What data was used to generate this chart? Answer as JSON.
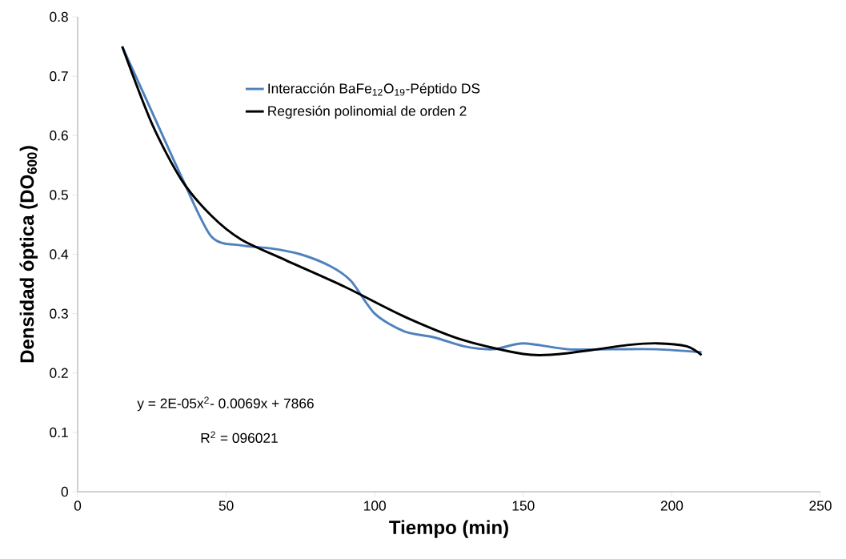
{
  "chart_data": {
    "type": "line",
    "xlabel": "Tiempo (min)",
    "ylabel": "Densidad óptica (DO$_{600}$)",
    "xlim": [
      0,
      250
    ],
    "xticks": [
      0,
      50,
      100,
      150,
      200,
      250
    ],
    "ylim": [
      0,
      0.8
    ],
    "yticks": [
      0,
      0.1,
      0.2,
      0.3,
      0.4,
      0.5,
      0.6,
      0.7,
      0.8
    ],
    "grid": false,
    "legend": "top",
    "marker": "none",
    "line_style": "solid",
    "series": [
      {
        "name": "Interacción BaFe$_{12}$O$_{19}$-Péptido DS",
        "color": "#4f81bd",
        "x": [
          15,
          25,
          35,
          45,
          55,
          65,
          75,
          85,
          92,
          100,
          110,
          120,
          130,
          140,
          150,
          165,
          180,
          195,
          210
        ],
        "values": [
          0.75,
          0.64,
          0.53,
          0.43,
          0.415,
          0.41,
          0.4,
          0.38,
          0.355,
          0.3,
          0.27,
          0.26,
          0.245,
          0.24,
          0.25,
          0.24,
          0.24,
          0.24,
          0.235
        ]
      },
      {
        "name": "Regresión polinomial de orden 2",
        "color": "#000000",
        "x": [
          15,
          25,
          35,
          45,
          55,
          70,
          90,
          110,
          130,
          150,
          160,
          175,
          185,
          195,
          205,
          210
        ],
        "values": [
          0.75,
          0.62,
          0.525,
          0.465,
          0.425,
          0.39,
          0.345,
          0.295,
          0.255,
          0.232,
          0.231,
          0.24,
          0.247,
          0.25,
          0.245,
          0.23
        ]
      }
    ],
    "annotations": [
      "y = 2E-05x$^{2}$- 0.0069x + 7866",
      "R$^{2}$ = 096021"
    ]
  }
}
